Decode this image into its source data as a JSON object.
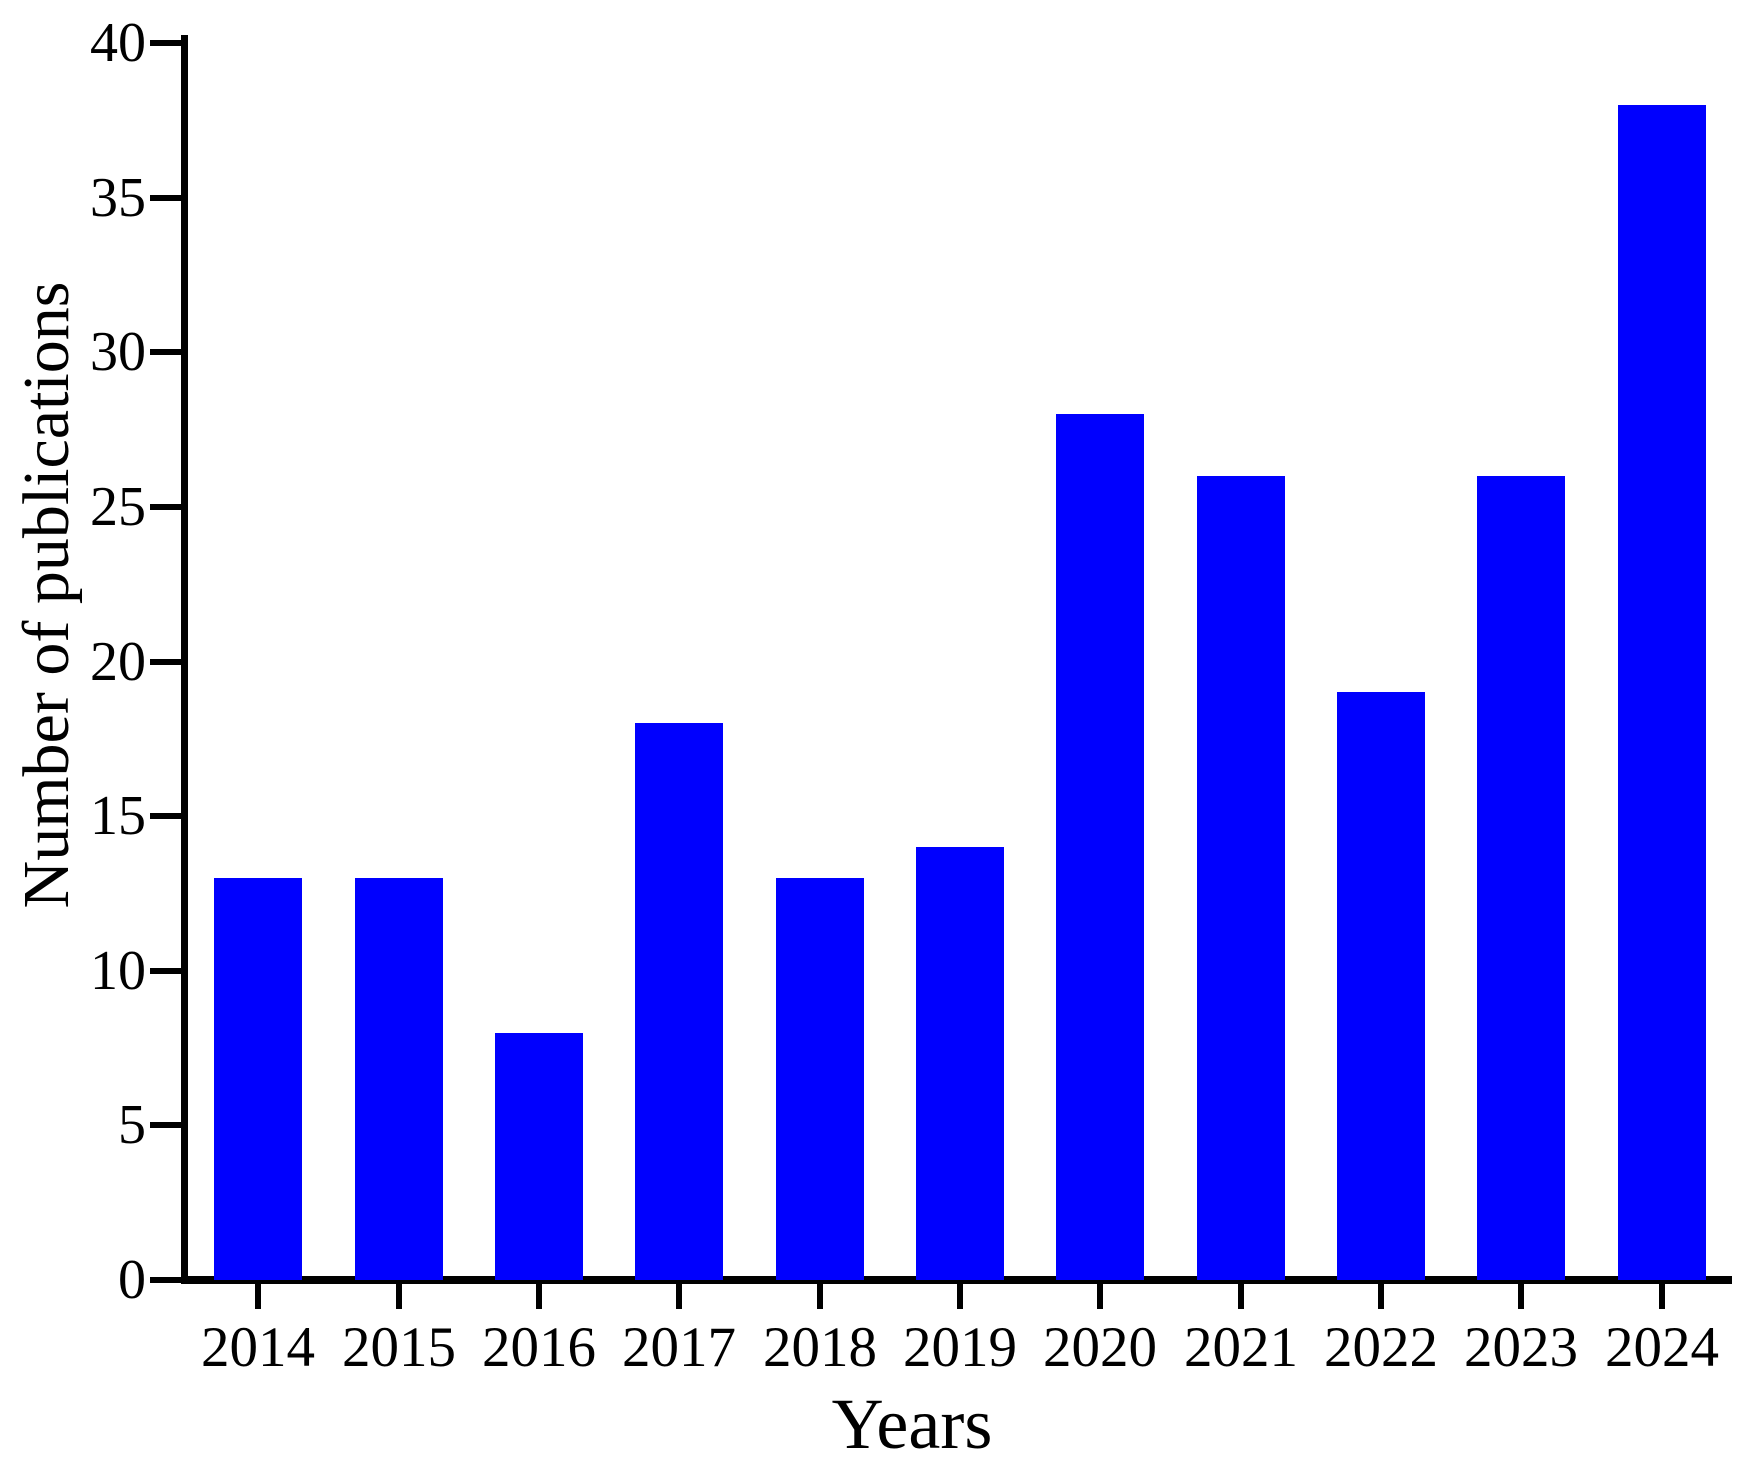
{
  "chart_data": {
    "type": "bar",
    "title": "",
    "xlabel": "Years",
    "ylabel": "Number of publications",
    "categories": [
      "2014",
      "2015",
      "2016",
      "2017",
      "2018",
      "2019",
      "2020",
      "2021",
      "2022",
      "2023",
      "2024"
    ],
    "values": [
      13,
      13,
      8,
      18,
      13,
      14,
      28,
      26,
      19,
      26,
      38
    ],
    "ylim": [
      0,
      40
    ],
    "yticks": [
      0,
      5,
      10,
      15,
      20,
      25,
      30,
      35,
      40
    ],
    "grid": false,
    "legend": "none",
    "bar_color": "#0000fe",
    "axis_color": "#000000",
    "text_color": "#000000",
    "background": "#ffffff"
  }
}
